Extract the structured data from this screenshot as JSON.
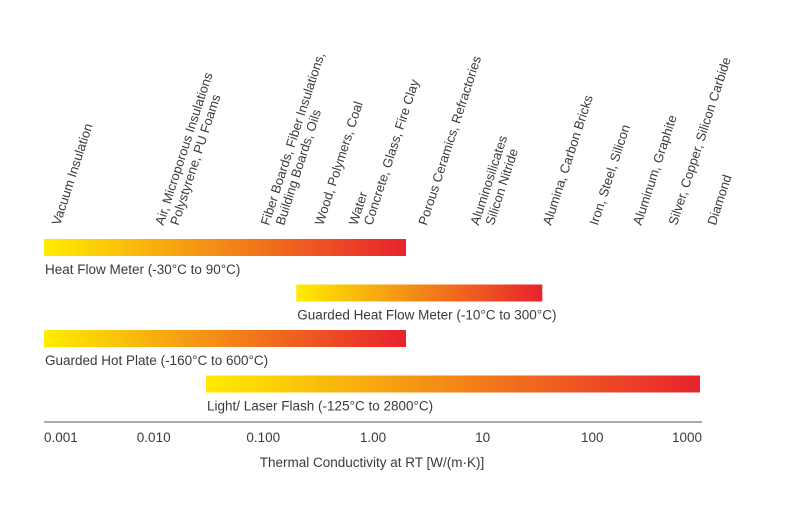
{
  "chart_data": {
    "type": "bar",
    "orientation": "horizontal-range",
    "x_scale": "log",
    "xlabel": "Thermal Conductivity at RT [W/(m·K)]",
    "xlim": [
      0.001,
      1000
    ],
    "x_ticks": [
      "0.001",
      "0.010",
      "0.100",
      "1.00",
      "10",
      "100",
      "1000"
    ],
    "bar_gradient": [
      "#ffec00",
      "#e8222e"
    ],
    "materials": [
      {
        "lines": [
          "Vacuum Insulation"
        ],
        "x": 0.001
      },
      {
        "lines": [
          "Air, Microporous Insulations",
          "Polystyrene, PU Foams"
        ],
        "x": 0.012
      },
      {
        "lines": [
          "Fiber Boards, Fiber Insulations,",
          "Building Boards, Oils"
        ],
        "x": 0.11
      },
      {
        "lines": [
          "Wood, Polymers, Coal"
        ],
        "x": 0.25
      },
      {
        "lines": [
          "Water",
          "Concrete, Glass, Fire Clay"
        ],
        "x": 0.7
      },
      {
        "lines": [
          "Porous Ceramics, Refractories"
        ],
        "x": 2.2
      },
      {
        "lines": [
          "Aluminosilicates",
          "Silicon Nitride"
        ],
        "x": 9
      },
      {
        "lines": [
          "Alumina, Carbon Bricks"
        ],
        "x": 30
      },
      {
        "lines": [
          "Iron, Steel, Silicon"
        ],
        "x": 80
      },
      {
        "lines": [
          "Aluminum, Graphite"
        ],
        "x": 200
      },
      {
        "lines": [
          "Silver, Copper, Silicon Carbide"
        ],
        "x": 420
      },
      {
        "lines": [
          "Diamond"
        ],
        "x": 950
      }
    ],
    "series": [
      {
        "name": "Heat Flow Meter (-30°C to 90°C)",
        "range": [
          0.001,
          2
        ]
      },
      {
        "name": "Guarded Heat Flow Meter (-10°C to 300°C)",
        "range": [
          0.2,
          35
        ]
      },
      {
        "name": "Guarded Hot Plate (-160°C to 600°C)",
        "range": [
          0.001,
          2
        ]
      },
      {
        "name": "Light/ Laser Flash (-125°C to 2800°C)",
        "range": [
          0.03,
          2000
        ]
      }
    ]
  }
}
